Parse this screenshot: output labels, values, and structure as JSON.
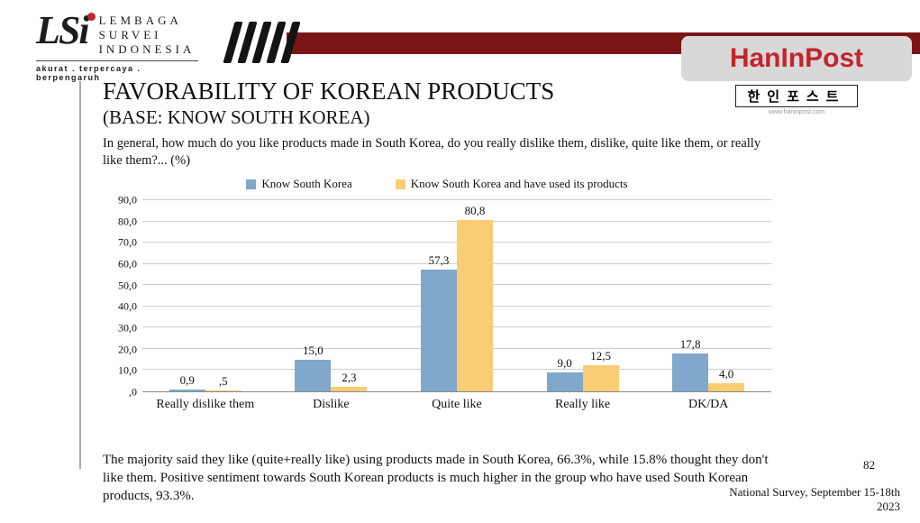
{
  "header": {
    "logo": {
      "monogram": "LSi",
      "name_lines": [
        "LEMBAGA",
        "SURVEI",
        "INDONESIA"
      ],
      "tagline": "akurat . terpercaya . berpengaruh"
    },
    "haninpost": {
      "name": "HanInPost",
      "korean": "한인포스트",
      "url": "www.haninpost.com"
    }
  },
  "title": "FAVORABILITY OF KOREAN PRODUCTS",
  "subtitle": "(BASE: KNOW SOUTH KOREA)",
  "question": "In general, how much do you like products made in South Korea, do you really dislike them, dislike, quite like them, or really like them?... (%)",
  "chart_data": {
    "type": "bar",
    "categories": [
      "Really dislike them",
      "Dislike",
      "Quite like",
      "Really like",
      "DK/DA"
    ],
    "series": [
      {
        "name": "Know South Korea",
        "color": "#7fa8cb",
        "values": [
          0.9,
          15.0,
          57.3,
          9.0,
          17.8
        ],
        "labels": [
          "0,9",
          "15,0",
          "57,3",
          "9,0",
          "17,8"
        ]
      },
      {
        "name": "Know South Korea and have used its products",
        "color": "#facc73",
        "values": [
          0.5,
          2.3,
          80.8,
          12.5,
          4.0
        ],
        "labels": [
          ",5",
          "2,3",
          "80,8",
          "12,5",
          "4,0"
        ]
      }
    ],
    "ylim": [
      0,
      90
    ],
    "ytick_step": 10,
    "ytick_labels": [
      ",0",
      "10,0",
      "20,0",
      "30,0",
      "40,0",
      "50,0",
      "60,0",
      "70,0",
      "80,0",
      "90,0"
    ],
    "grid": true,
    "legend_position": "top",
    "title": "FAVORABILITY OF KOREAN PRODUCTS (BASE: KNOW SOUTH KOREA)",
    "xlabel": "",
    "ylabel": ""
  },
  "summary": "The majority said they like (quite+really like) using products made in South Korea, 66.3%, while 15.8% thought they don't like them. Positive sentiment towards South Korean products is much higher in the group who have used South Korean products, 93.3%.",
  "page_number": "82",
  "footer": {
    "line1": "National Survey, September 15-18th",
    "line2": "2023"
  }
}
